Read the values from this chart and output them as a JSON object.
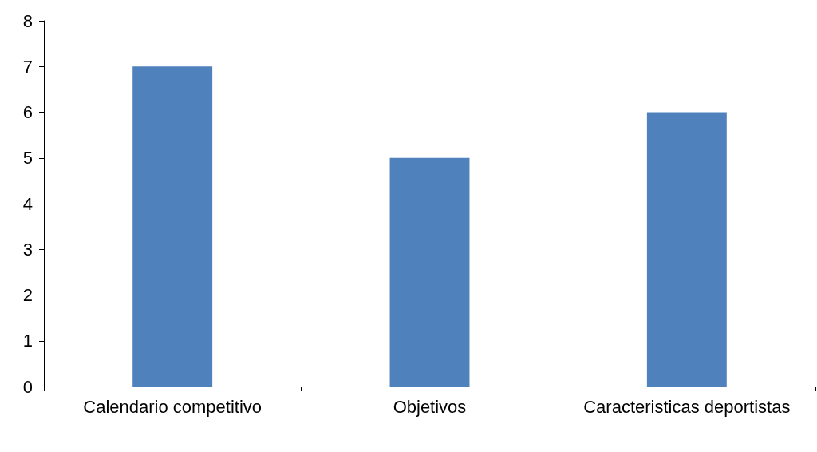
{
  "chart_data": {
    "type": "bar",
    "categories": [
      "Calendario competitivo",
      "Objetivos",
      "Caracteristicas deportistas"
    ],
    "values": [
      7,
      5,
      6
    ],
    "color": "#4f81bd",
    "ylim": [
      0,
      8
    ],
    "yticks": [
      0,
      1,
      2,
      3,
      4,
      5,
      6,
      7,
      8
    ],
    "grid": false
  }
}
